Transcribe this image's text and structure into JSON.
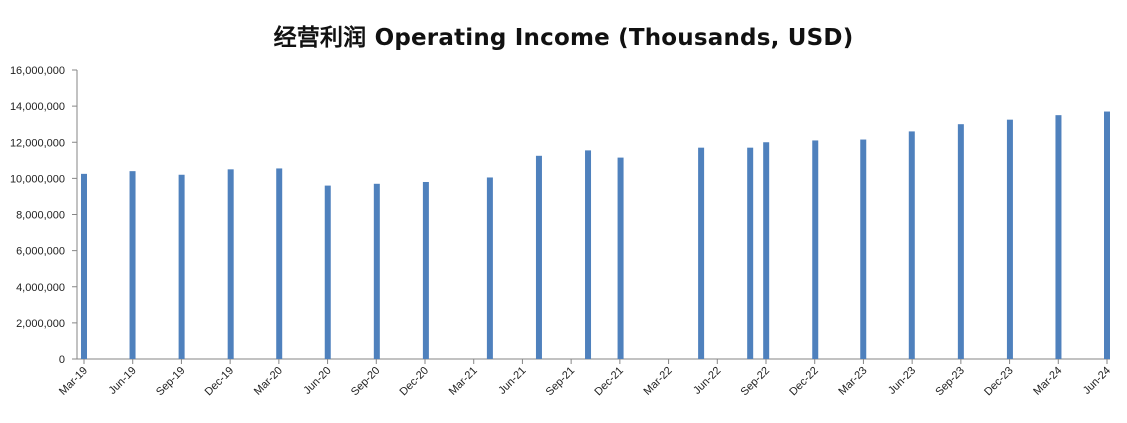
{
  "chart_data": {
    "type": "bar",
    "title": "经营利润 Operating Income (Thousands, USD)",
    "xlabel": "",
    "ylabel": "",
    "ylim": [
      0,
      16000000
    ],
    "yticks": [
      "0",
      "2,000,000",
      "4,000,000",
      "6,000,000",
      "8,000,000",
      "10,000,000",
      "12,000,000",
      "14,000,000",
      "16,000,000"
    ],
    "xaxis_labels": [
      "Mar-19",
      "Jun-19",
      "Sep-19",
      "Dec-19",
      "Mar-20",
      "Jun-20",
      "Sep-20",
      "Dec-20",
      "Mar-21",
      "Jun-21",
      "Sep-21",
      "Dec-21",
      "Mar-22",
      "Jun-22",
      "Sep-22",
      "Dec-22",
      "Mar-23",
      "Jun-23",
      "Sep-23",
      "Dec-23",
      "Mar-24",
      "Jun-24"
    ],
    "x_start": "2019-03-31",
    "x_end": "2024-06-30",
    "points": [
      {
        "date": "2019-03-31",
        "value": 10250000
      },
      {
        "date": "2019-06-30",
        "value": 10400000
      },
      {
        "date": "2019-09-30",
        "value": 10200000
      },
      {
        "date": "2019-12-31",
        "value": 10500000
      },
      {
        "date": "2020-03-31",
        "value": 10550000
      },
      {
        "date": "2020-06-30",
        "value": 9600000
      },
      {
        "date": "2020-09-30",
        "value": 9700000
      },
      {
        "date": "2020-12-31",
        "value": 9800000
      },
      {
        "date": "2021-04-30",
        "value": 10050000
      },
      {
        "date": "2021-07-31",
        "value": 11250000
      },
      {
        "date": "2021-10-31",
        "value": 11550000
      },
      {
        "date": "2021-12-31",
        "value": 11150000
      },
      {
        "date": "2022-05-31",
        "value": 11700000
      },
      {
        "date": "2022-08-31",
        "value": 11700000
      },
      {
        "date": "2022-09-30",
        "value": 12000000
      },
      {
        "date": "2022-12-31",
        "value": 12100000
      },
      {
        "date": "2023-03-31",
        "value": 12150000
      },
      {
        "date": "2023-06-30",
        "value": 12600000
      },
      {
        "date": "2023-09-30",
        "value": 13000000
      },
      {
        "date": "2023-12-31",
        "value": 13250000
      },
      {
        "date": "2024-03-31",
        "value": 13500000
      },
      {
        "date": "2024-06-30",
        "value": 13700000
      }
    ],
    "colors": {
      "bar": "#4f81bd",
      "axis": "#868686",
      "text": "#222222"
    },
    "grid": false,
    "legend": "none"
  }
}
